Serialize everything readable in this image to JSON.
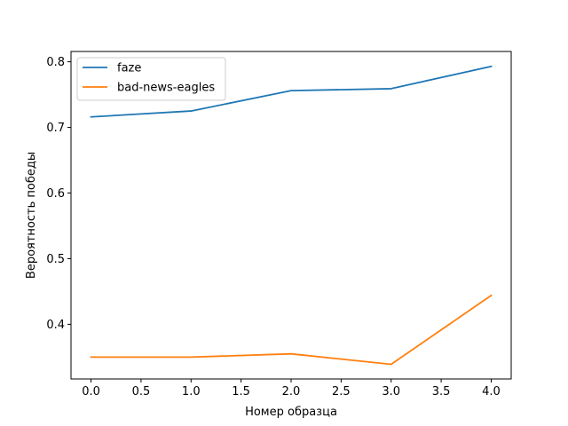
{
  "chart_data": {
    "type": "line",
    "title": "",
    "xlabel": "Номер образца",
    "ylabel": "Вероятность победы",
    "x": [
      0,
      1,
      2,
      3,
      4
    ],
    "series": [
      {
        "name": "faze",
        "color": "#1f77b4",
        "values": [
          0.716,
          0.725,
          0.756,
          0.759,
          0.793
        ]
      },
      {
        "name": "bad-news-eagles",
        "color": "#ff7f0e",
        "values": [
          0.35,
          0.35,
          0.355,
          0.339,
          0.444
        ]
      }
    ],
    "xlim": [
      -0.2,
      4.2
    ],
    "ylim": [
      0.3167,
      0.8157
    ],
    "xticks": [
      0.0,
      0.5,
      1.0,
      1.5,
      2.0,
      2.5,
      3.0,
      3.5,
      4.0
    ],
    "xtick_labels": [
      "0.0",
      "0.5",
      "1.0",
      "1.5",
      "2.0",
      "2.5",
      "3.0",
      "3.5",
      "4.0"
    ],
    "yticks": [
      0.4,
      0.5,
      0.6,
      0.7,
      0.8
    ],
    "ytick_labels": [
      "0.4",
      "0.5",
      "0.6",
      "0.7",
      "0.8"
    ],
    "grid": false,
    "legend": "top-left"
  }
}
